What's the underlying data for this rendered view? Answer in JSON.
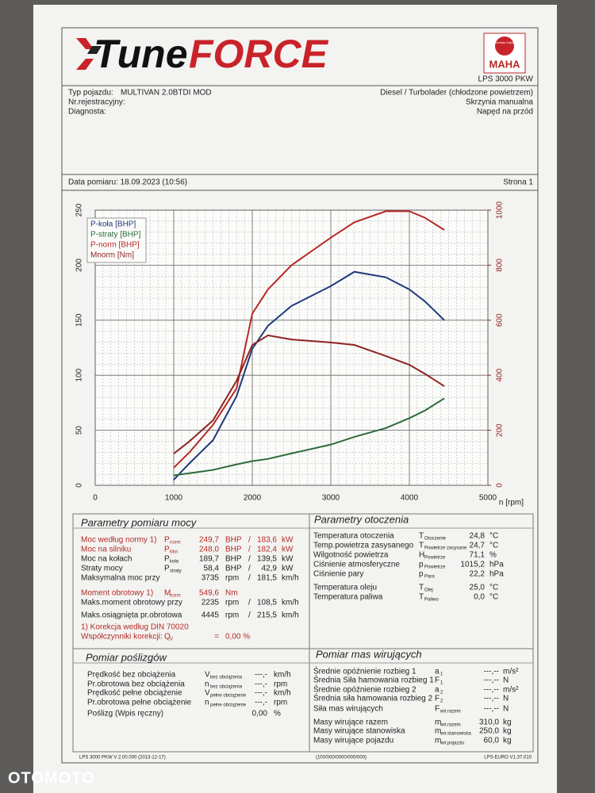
{
  "header": {
    "logo_1": "Tune",
    "logo_2": "FORCE",
    "badge_top": "Maschinenbau Haldenwang",
    "badge_name": "MAHA",
    "model": "LPS 3000 PKW"
  },
  "vehicle": {
    "left": [
      {
        "label": "Typ pojazdu:",
        "value": "MULTIVAN 2.0BTDI MOD"
      },
      {
        "label": "Nr.rejestracyjny:"
      },
      {
        "label": "Diagnosta:"
      }
    ],
    "right": [
      "Diesel / Turbolader (chłodzone powietrzem)",
      "Skrzynia manualna",
      "Napęd na przód"
    ]
  },
  "date": "Data pomiaru: 18.09.2023 (10:56)",
  "page": "Strona 1",
  "chart_data": {
    "type": "line",
    "x_label": "n [rpm]",
    "x": [
      1000,
      1200,
      1500,
      1800,
      2000,
      2200,
      2500,
      3000,
      3300,
      3700,
      4000,
      4200,
      4445
    ],
    "series": [
      {
        "name": "P-koła [BHP]",
        "color": "#1f3a7a",
        "values": [
          5,
          20,
          41,
          81,
          124,
          145,
          163,
          181,
          194,
          189,
          178,
          167,
          150
        ]
      },
      {
        "name": "P-straty [BHP]",
        "color": "#2e6b3a",
        "values": [
          9,
          11,
          14,
          19,
          22,
          24,
          29,
          37,
          44,
          52,
          61,
          68,
          79
        ]
      },
      {
        "name": "P-norm [BHP]",
        "color": "#b52a25",
        "values": [
          16,
          30,
          55,
          88,
          156,
          178,
          200,
          225,
          239,
          249,
          249,
          243,
          232
        ]
      },
      {
        "name": "Mnorm [Nm]",
        "color": "#8f2320",
        "axis": "y2",
        "values": [
          115,
          160,
          236,
          380,
          510,
          545,
          530,
          519,
          510,
          470,
          438,
          405,
          360
        ]
      }
    ],
    "xlim": [
      0,
      5000
    ],
    "xticks": [
      0,
      1000,
      2000,
      3000,
      4000,
      5000
    ],
    "ylim": [
      0,
      250
    ],
    "yticks": [
      0,
      50,
      100,
      150,
      200,
      250
    ],
    "y2lim": [
      0,
      1000
    ],
    "y2ticks": [
      0,
      200,
      400,
      600,
      800,
      1000
    ],
    "grid": true,
    "legend": "top-left"
  },
  "power": {
    "title": "Parametry pomiaru mocy",
    "rows": [
      {
        "label": "Moc według normy 1)",
        "sym": "P",
        "sub": "norm",
        "value": "249,7",
        "unit": "BHP",
        "sep": "/",
        "value2": "183,6",
        "unit2": "kW",
        "color": "#b52a25"
      },
      {
        "label": "Moc na silniku",
        "sym": "P",
        "sub": "Mot",
        "value": "248,0",
        "unit": "BHP",
        "sep": "/",
        "value2": "182,4",
        "unit2": "kW",
        "color": "#b52a25"
      },
      {
        "label": "Moc na kołach",
        "sym": "P",
        "sub": "koła",
        "value": "189,7",
        "unit": "BHP",
        "sep": "/",
        "value2": "139,5",
        "unit2": "kW"
      },
      {
        "label": "Straty mocy",
        "sym": "P",
        "sub": "straty",
        "value": "58,4",
        "unit": "BHP",
        "sep": "/",
        "value2": "42,9",
        "unit2": "kW"
      },
      {
        "label": "Maksymalna moc przy",
        "value": "3735",
        "unit": "rpm",
        "sep": "/",
        "value2": "181,5",
        "unit2": "km/h"
      },
      {
        "label": "Moment obrotowy 1)",
        "sym": "M",
        "sub": "norm",
        "value": "549,6",
        "unit": "Nm",
        "color": "#b52a25"
      },
      {
        "label": "Maks.moment obrotowy przy",
        "value": "2235",
        "unit": "rpm",
        "sep": "/",
        "value2": "108,5",
        "unit2": "km/h"
      },
      {
        "label": "Maks.osiągnięta pr.obrotowa",
        "value": "4445",
        "unit": "rpm",
        "sep": "/",
        "value2": "215,5",
        "unit2": "km/h"
      },
      {
        "label": "1) Korekcja według DIN 70020",
        "color": "#b52a25"
      },
      {
        "label": "Współczynniki korekcji:",
        "sym": "Q",
        "sub": "V",
        "value": "=",
        "unit": "0,00 %",
        "color": "#b52a25"
      }
    ]
  },
  "ambient": {
    "title": "Parametry otoczenia",
    "rows": [
      {
        "label": "Temperatura otoczenia",
        "sym": "T",
        "sub": "Otoczenie",
        "value": "24,8",
        "unit": "°C"
      },
      {
        "label": "Temp.powietrza zasysanego",
        "sym": "T",
        "sub": "Powietrze zasysane",
        "value": "24,7",
        "unit": "°C"
      },
      {
        "label": "Wilgotność powietrza",
        "sym": "H",
        "sub": "Powietrze",
        "value": "71,1",
        "unit": "%"
      },
      {
        "label": "Ciśnienie atmosferyczne",
        "sym": "p",
        "sub": "Powietrze",
        "value": "1015,2",
        "unit": "hPa"
      },
      {
        "label": "Ciśnienie pary",
        "sym": "p",
        "sub": "Para",
        "value": "22,2",
        "unit": "hPa"
      },
      {
        "label": "Temperatura oleju",
        "sym": "T",
        "sub": "Olej",
        "value": "25,0",
        "unit": "°C"
      },
      {
        "label": "Temperatura paliwa",
        "sym": "T",
        "sub": "Paliwo",
        "value": "0,0",
        "unit": "°C"
      }
    ]
  },
  "slip": {
    "title": "Pomiar poślizgów",
    "rows": [
      {
        "label": "Prędkość bez obciążenia",
        "sym": "V",
        "sub": "bez obciążenia",
        "value": "---,-",
        "unit": "km/h"
      },
      {
        "label": "Pr.obrotowa bez obciążenia",
        "sym": "n",
        "sub": "bez obciążenia",
        "value": "---,-",
        "unit": "rpm"
      },
      {
        "label": "Prędkość pełne obciążenie",
        "sym": "V",
        "sub": "pełne obciążenie",
        "value": "---,-",
        "unit": "km/h"
      },
      {
        "label": "Pr.obrotowa pełne obciążenie",
        "sym": "n",
        "sub": "pełne obciążenie",
        "value": "---,-",
        "unit": "rpm"
      },
      {
        "label": "Poślizg (Wpis ręczny)",
        "value": "0,00",
        "unit": "%"
      }
    ]
  },
  "mass": {
    "title": "Pomiar mas wirujących",
    "rows": [
      {
        "label": "Średnie opóźnienie rozbieg 1",
        "sym": "a",
        "sub": "1",
        "value": "---,--",
        "unit": "m/s²"
      },
      {
        "label": "Średnia Siła hamowania rozbieg 1",
        "sym": "F",
        "sub": "1",
        "value": "---,--",
        "unit": "N"
      },
      {
        "label": "Średnie opóźnienie rozbieg 2",
        "sym": "a",
        "sub": "2",
        "value": "---,--",
        "unit": "m/s²"
      },
      {
        "label": "Średnia siła hamowania rozbieg 2",
        "sym": "F",
        "sub": "2",
        "value": "---,--",
        "unit": "N"
      },
      {
        "label": "Siła mas wirujących",
        "sym": "F",
        "sub": "wir.razem",
        "value": "---,--",
        "unit": "N"
      },
      {
        "label": "Masy wirujące razem",
        "sym": "m",
        "sub": "wir.razem",
        "value": "310,0",
        "unit": "kg"
      },
      {
        "label": "Masy wirujące stanowiska",
        "sym": "m",
        "sub": "wir.stanowiska",
        "value": "250,0",
        "unit": "kg"
      },
      {
        "label": "Masy wirujące pojazdu",
        "sym": "m",
        "sub": "wir.pojazdu",
        "value": "60,0",
        "unit": "kg"
      }
    ]
  },
  "footer": {
    "left": "LPS 3000 PKW V 2.00.000 (2013-12-17)",
    "center": "(100/000/0000/000/000)",
    "right": "LPS-EURO V1.37.010"
  },
  "watermark": "OTOMOTO"
}
